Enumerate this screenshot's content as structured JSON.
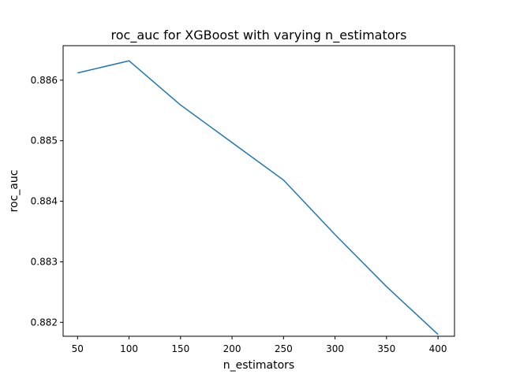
{
  "chart_data": {
    "type": "line",
    "title": "roc_auc for XGBoost with varying n_estimators",
    "xlabel": "n_estimators",
    "ylabel": "roc_auc",
    "x": [
      50,
      100,
      150,
      200,
      250,
      300,
      350,
      400
    ],
    "series": [
      {
        "values": [
          0.88612,
          0.88632,
          0.88559,
          0.88497,
          0.88435,
          0.88345,
          0.88259,
          0.8818
        ],
        "color": "#1f77b4"
      }
    ],
    "xlim": [
      36,
      416
    ],
    "ylim": [
      0.88177,
      0.88657
    ],
    "xticks": [
      50,
      100,
      150,
      200,
      250,
      300,
      350,
      400
    ],
    "xtick_labels": [
      "50",
      "100",
      "150",
      "200",
      "250",
      "300",
      "350",
      "400"
    ],
    "yticks": [
      0.882,
      0.883,
      0.884,
      0.885,
      0.886
    ],
    "ytick_labels": [
      "0.882",
      "0.883",
      "0.884",
      "0.885",
      "0.886"
    ],
    "grid": false,
    "legend": "none"
  }
}
